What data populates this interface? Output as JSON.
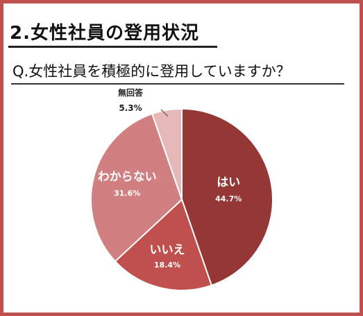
{
  "header": {
    "title": "2.女性社員の登用状況",
    "question": "Q.女性社員を積極的に登用していますか？"
  },
  "colors": {
    "frame": "#c0504d",
    "slices": [
      "#953735",
      "#c0504d",
      "#d08080",
      "#e6b9b8"
    ]
  },
  "chart_data": {
    "type": "pie",
    "title": "",
    "start_angle_deg": 0,
    "direction": "clockwise",
    "slices": [
      {
        "label": "はい",
        "value": 44.7,
        "display": "44.7%"
      },
      {
        "label": "いいえ",
        "value": 18.4,
        "display": "18.4%"
      },
      {
        "label": "わからない",
        "value": 31.6,
        "display": "31.6%"
      },
      {
        "label": "無回答",
        "value": 5.3,
        "display": "5.3%"
      }
    ]
  }
}
